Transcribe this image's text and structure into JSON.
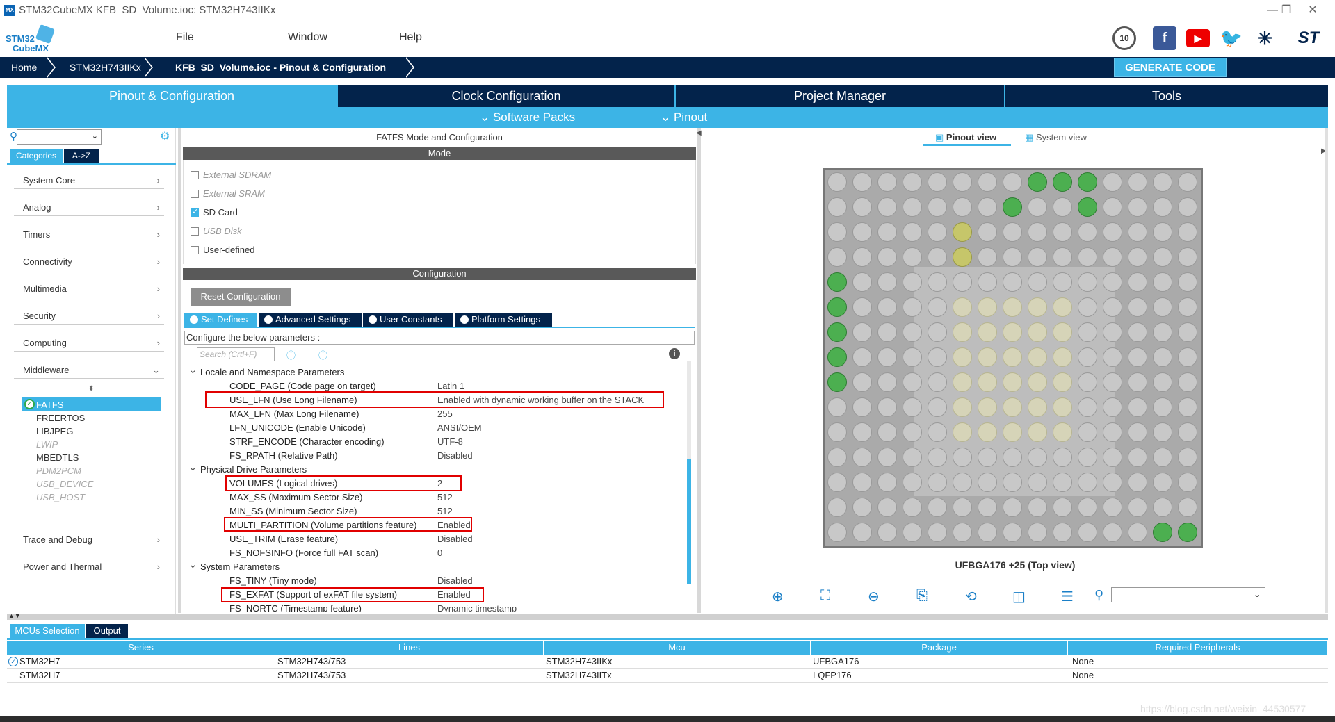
{
  "window": {
    "title": "STM32CubeMX KFB_SD_Volume.ioc: STM32H743IIKx",
    "icon_text": "MX"
  },
  "logo": {
    "line1": "STM32",
    "line2": "CubeMX"
  },
  "menu": [
    {
      "label": "File"
    },
    {
      "label": "Window"
    },
    {
      "label": "Help"
    }
  ],
  "breadcrumb": [
    {
      "label": "Home"
    },
    {
      "label": "STM32H743IIKx"
    },
    {
      "label": "KFB_SD_Volume.ioc - Pinout & Configuration"
    }
  ],
  "generate_label": "GENERATE CODE",
  "main_tabs": [
    {
      "label": "Pinout & Configuration"
    },
    {
      "label": "Clock Configuration"
    },
    {
      "label": "Project Manager"
    },
    {
      "label": "Tools"
    }
  ],
  "sub_tabs": [
    {
      "label": "Software Packs"
    },
    {
      "label": "Pinout"
    }
  ],
  "left": {
    "cat_tabs": [
      {
        "label": "Categories"
      },
      {
        "label": "A->Z"
      }
    ],
    "categories": [
      {
        "label": "System Core"
      },
      {
        "label": "Analog"
      },
      {
        "label": "Timers"
      },
      {
        "label": "Connectivity"
      },
      {
        "label": "Multimedia"
      },
      {
        "label": "Security"
      },
      {
        "label": "Computing"
      },
      {
        "label": "Middleware"
      }
    ],
    "middleware": [
      {
        "label": "FATFS"
      },
      {
        "label": "FREERTOS"
      },
      {
        "label": "LIBJPEG"
      },
      {
        "label": "LWIP"
      },
      {
        "label": "MBEDTLS"
      },
      {
        "label": "PDM2PCM"
      },
      {
        "label": "USB_DEVICE"
      },
      {
        "label": "USB_HOST"
      }
    ],
    "categories_bottom": [
      {
        "label": "Trace and Debug"
      },
      {
        "label": "Power and Thermal"
      }
    ]
  },
  "mid": {
    "title": "FATFS Mode and Configuration",
    "mode_header": "Mode",
    "modes": [
      {
        "label": "External SDRAM",
        "checked": false,
        "enabled": false
      },
      {
        "label": "External SRAM",
        "checked": false,
        "enabled": false
      },
      {
        "label": "SD Card",
        "checked": true,
        "enabled": true
      },
      {
        "label": "USB Disk",
        "checked": false,
        "enabled": false
      },
      {
        "label": "User-defined",
        "checked": false,
        "enabled": true
      }
    ],
    "config_header": "Configuration",
    "reset_label": "Reset Configuration",
    "cfg_tabs": [
      {
        "label": "Set Defines"
      },
      {
        "label": "Advanced Settings"
      },
      {
        "label": "User Constants"
      },
      {
        "label": "Platform Settings"
      }
    ],
    "cfg_desc": "Configure the below parameters :",
    "search_placeholder": "Search (Crtl+F)",
    "info_icon": "i",
    "groups": [
      {
        "label": "Locale and Namespace Parameters"
      },
      {
        "label": "Physical Drive Parameters"
      },
      {
        "label": "System Parameters"
      }
    ],
    "params": [
      {
        "name": "CODE_PAGE (Code page on target)",
        "value": "Latin 1"
      },
      {
        "name": "USE_LFN (Use Long Filename)",
        "value": "Enabled with dynamic working buffer on the STACK"
      },
      {
        "name": "MAX_LFN (Max Long Filename)",
        "value": "255"
      },
      {
        "name": "LFN_UNICODE (Enable Unicode)",
        "value": "ANSI/OEM"
      },
      {
        "name": "STRF_ENCODE (Character encoding)",
        "value": "UTF-8"
      },
      {
        "name": "FS_RPATH (Relative Path)",
        "value": "Disabled"
      },
      {
        "name": "VOLUMES (Logical drives)",
        "value": "2"
      },
      {
        "name": "MAX_SS (Maximum Sector Size)",
        "value": "512"
      },
      {
        "name": "MIN_SS (Minimum Sector Size)",
        "value": "512"
      },
      {
        "name": "MULTI_PARTITION (Volume partitions feature)",
        "value": "Enabled"
      },
      {
        "name": "USE_TRIM (Erase feature)",
        "value": "Disabled"
      },
      {
        "name": "FS_NOFSINFO (Force full FAT scan)",
        "value": "0"
      },
      {
        "name": "FS_TINY (Tiny mode)",
        "value": "Disabled"
      },
      {
        "name": "FS_EXFAT (Support of exFAT file system)",
        "value": "Enabled"
      },
      {
        "name": "FS_NORTC (Timestamp feature)",
        "value": "Dynamic timestamp"
      }
    ]
  },
  "right": {
    "view_tabs": [
      {
        "label": "Pinout view"
      },
      {
        "label": "System view"
      }
    ],
    "chip_caption": "UFBGA176 +25 (Top view)"
  },
  "bottom": {
    "tabs": [
      {
        "label": "MCUs Selection"
      },
      {
        "label": "Output"
      }
    ],
    "columns": [
      "Series",
      "Lines",
      "Mcu",
      "Package",
      "Required Peripherals"
    ],
    "rows": [
      [
        "STM32H7",
        "STM32H743/753",
        "STM32H743IIKx",
        "UFBGA176",
        "None"
      ],
      [
        "STM32H7",
        "STM32H743/753",
        "STM32H743IITx",
        "LQFP176",
        "None"
      ]
    ]
  },
  "watermark": "https://blog.csdn.net/weixin_44530577",
  "colors": {
    "accent": "#3cb4e6",
    "navy": "#03234b",
    "highlight": "#e10000"
  }
}
